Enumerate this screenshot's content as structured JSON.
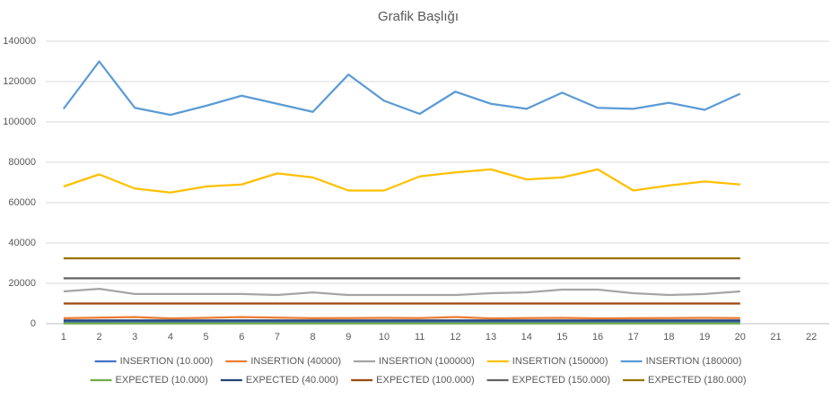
{
  "chart_data": {
    "type": "line",
    "title": "Grafik Başlığı",
    "categories": [
      "1",
      "2",
      "3",
      "4",
      "5",
      "6",
      "7",
      "8",
      "9",
      "10",
      "11",
      "12",
      "13",
      "14",
      "15",
      "16",
      "17",
      "18",
      "19",
      "20",
      "21",
      "22"
    ],
    "ylim": [
      0,
      140000
    ],
    "yticks": [
      0,
      20000,
      40000,
      60000,
      80000,
      100000,
      120000,
      140000
    ],
    "grid": true,
    "series": [
      {
        "name": "INSERTION  (10.000)",
        "color": "#4472C4",
        "values": [
          700,
          750,
          700,
          650,
          700,
          720,
          700,
          680,
          700,
          690,
          700,
          720,
          700,
          690,
          700,
          710,
          690,
          700,
          700,
          710,
          null,
          null
        ]
      },
      {
        "name": "INSERTION (40000)",
        "color": "#ED7D31",
        "values": [
          2700,
          3000,
          3300,
          2600,
          2900,
          3300,
          3000,
          2700,
          2800,
          2900,
          2800,
          3300,
          2600,
          2800,
          2900,
          2600,
          2700,
          2800,
          2900,
          2800,
          null,
          null
        ]
      },
      {
        "name": "INSERTION (100000)",
        "color": "#A5A5A5",
        "values": [
          16000,
          17300,
          14700,
          14700,
          14700,
          14700,
          14200,
          15500,
          14200,
          14200,
          14200,
          14200,
          15100,
          15500,
          16900,
          16900,
          15100,
          14200,
          14700,
          16000,
          null,
          null
        ]
      },
      {
        "name": "INSERTION (150000)",
        "color": "#FFC000",
        "values": [
          68000,
          74000,
          67000,
          65000,
          68000,
          69000,
          74500,
          72500,
          66000,
          66000,
          73000,
          75000,
          76500,
          71500,
          72500,
          76500,
          66000,
          68500,
          70500,
          69000,
          null,
          null
        ]
      },
      {
        "name": "INSERTION (180000)",
        "color": "#5B9BD5",
        "values": [
          106500,
          130000,
          107000,
          103500,
          108000,
          113000,
          109000,
          105000,
          123500,
          110500,
          104000,
          115000,
          109000,
          106500,
          114500,
          107000,
          106500,
          109500,
          106000,
          114000,
          null,
          null
        ]
      },
      {
        "name": "EXPECTED (10.000)",
        "color": "#70AD47",
        "values": [
          100,
          100,
          100,
          100,
          100,
          100,
          100,
          100,
          100,
          100,
          100,
          100,
          100,
          100,
          100,
          100,
          100,
          100,
          100,
          100,
          null,
          null
        ]
      },
      {
        "name": "EXPECTED (40.000)",
        "color": "#264478",
        "values": [
          1600,
          1600,
          1600,
          1600,
          1600,
          1600,
          1600,
          1600,
          1600,
          1600,
          1600,
          1600,
          1600,
          1600,
          1600,
          1600,
          1600,
          1600,
          1600,
          1600,
          null,
          null
        ]
      },
      {
        "name": "EXPECTED (100.000)",
        "color": "#9E480E",
        "values": [
          10000,
          10000,
          10000,
          10000,
          10000,
          10000,
          10000,
          10000,
          10000,
          10000,
          10000,
          10000,
          10000,
          10000,
          10000,
          10000,
          10000,
          10000,
          10000,
          10000,
          null,
          null
        ]
      },
      {
        "name": "EXPECTED (150.000)",
        "color": "#636363",
        "values": [
          22500,
          22500,
          22500,
          22500,
          22500,
          22500,
          22500,
          22500,
          22500,
          22500,
          22500,
          22500,
          22500,
          22500,
          22500,
          22500,
          22500,
          22500,
          22500,
          22500,
          null,
          null
        ]
      },
      {
        "name": "EXPECTED (180.000)",
        "color": "#997300",
        "values": [
          32400,
          32400,
          32400,
          32400,
          32400,
          32400,
          32400,
          32400,
          32400,
          32400,
          32400,
          32400,
          32400,
          32400,
          32400,
          32400,
          32400,
          32400,
          32400,
          32400,
          null,
          null
        ]
      }
    ]
  }
}
